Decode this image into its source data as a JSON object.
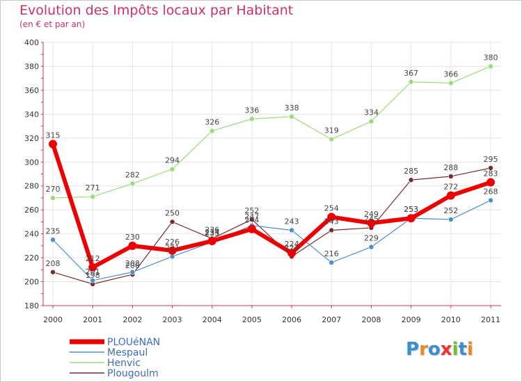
{
  "chart_data": {
    "type": "line",
    "title": "Evolution des Impôts locaux par Habitant",
    "subtitle": "(en € et par an)",
    "xlabel": "",
    "ylabel": "",
    "ylim": [
      180,
      400
    ],
    "yticks": [
      180,
      200,
      220,
      240,
      260,
      280,
      300,
      320,
      340,
      360,
      380,
      400
    ],
    "grid": true,
    "legend_position": "bottom-left",
    "categories": [
      "2000",
      "2001",
      "2002",
      "2003",
      "2004",
      "2005",
      "2006",
      "2007",
      "2008",
      "2009",
      "2010",
      "2011"
    ],
    "series": [
      {
        "name": "PLOUéNAN",
        "color": "#ee0000",
        "values": [
          315,
          212,
          230,
          226,
          234,
          244,
          224,
          254,
          249,
          253,
          272,
          283
        ]
      },
      {
        "name": "Mespaul",
        "color": "#4b8fcf",
        "values": [
          235,
          201,
          208,
          221,
          233,
          247,
          243,
          216,
          229,
          253,
          252,
          268
        ]
      },
      {
        "name": "Henvic",
        "color": "#99dd77",
        "values": [
          270,
          271,
          282,
          294,
          326,
          336,
          338,
          319,
          334,
          367,
          366,
          380
        ]
      },
      {
        "name": "Plougoulm",
        "color": "#7a2a2a",
        "values": [
          208,
          198,
          206,
          250,
          236,
          252,
          221,
          243,
          245,
          285,
          288,
          295
        ]
      }
    ]
  },
  "branding": {
    "letters": [
      "P",
      "r",
      "o",
      "x",
      "i",
      "t",
      "i"
    ],
    "colors": [
      "#3a8fd0",
      "#ee8822",
      "#3a8fd0",
      "#ee3333",
      "#77bb33",
      "#3a8fd0",
      "#ee8822"
    ]
  }
}
